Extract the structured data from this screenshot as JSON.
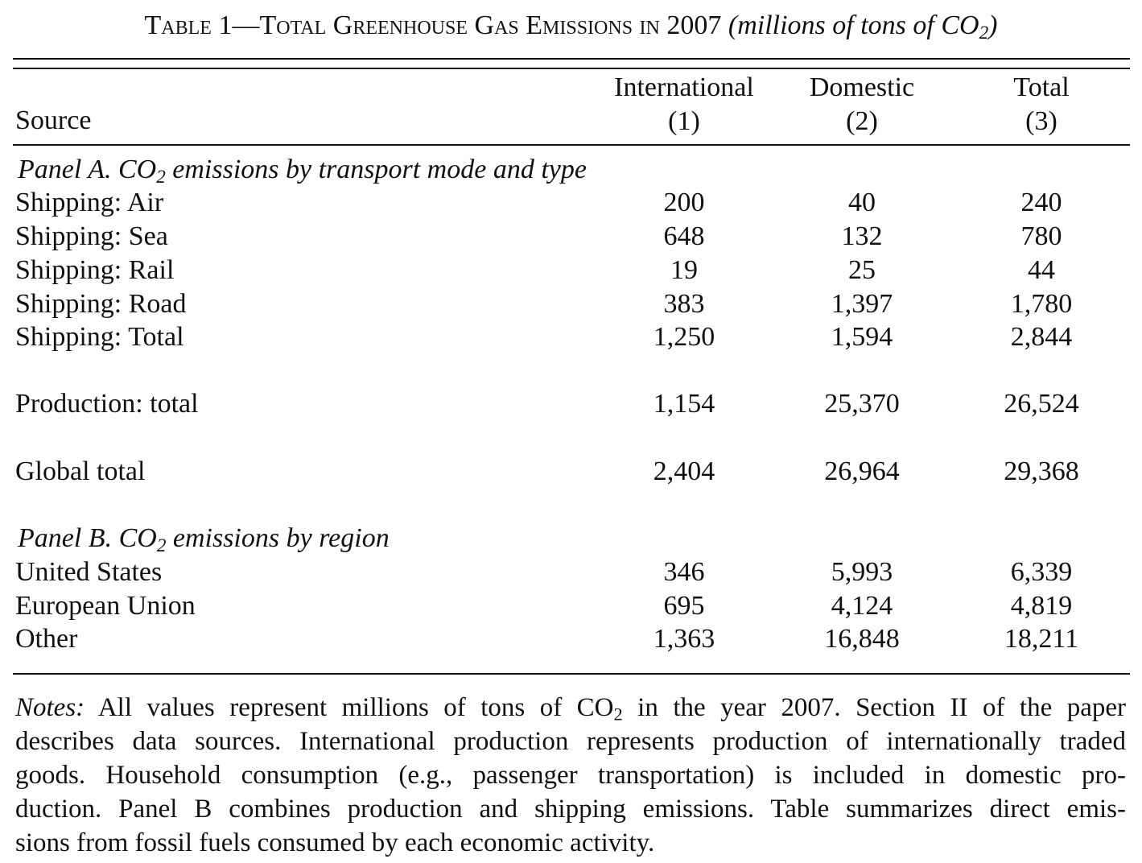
{
  "caption": {
    "table_label": "Table 1",
    "dash": "—",
    "title": "Total Greenhouse Gas Emissions in 2007",
    "units_open": "(millions of tons of CO",
    "units_sub": "2",
    "units_close": ")"
  },
  "header": {
    "source_label": "Source",
    "columns": [
      {
        "name": "International",
        "number": "(1)"
      },
      {
        "name": "Domestic",
        "number": "(2)"
      },
      {
        "name": "Total",
        "number": "(3)"
      }
    ]
  },
  "panel_a": {
    "title_prefix": "Panel A. CO",
    "title_sub": "2",
    "title_suffix": " emissions by transport mode and type",
    "rows": [
      {
        "label": "Shipping: Air",
        "values": [
          "200",
          "40",
          "240"
        ]
      },
      {
        "label": "Shipping: Sea",
        "values": [
          "648",
          "132",
          "780"
        ]
      },
      {
        "label": "Shipping: Rail",
        "values": [
          "19",
          "25",
          "44"
        ]
      },
      {
        "label": "Shipping: Road",
        "values": [
          "383",
          "1,397",
          "1,780"
        ]
      },
      {
        "label": "Shipping: Total",
        "values": [
          "1,250",
          "1,594",
          "2,844"
        ]
      }
    ],
    "production": {
      "label": "Production: total",
      "values": [
        "1,154",
        "25,370",
        "26,524"
      ]
    },
    "global": {
      "label": "Global total",
      "values": [
        "2,404",
        "26,964",
        "29,368"
      ]
    }
  },
  "panel_b": {
    "title_prefix": "Panel B. CO",
    "title_sub": "2",
    "title_suffix": " emissions by region",
    "rows": [
      {
        "label": "United States",
        "values": [
          "346",
          "5,993",
          "6,339"
        ]
      },
      {
        "label": "European Union",
        "values": [
          "695",
          "4,124",
          "4,819"
        ]
      },
      {
        "label": "Other",
        "values": [
          "1,363",
          "16,848",
          "18,211"
        ]
      }
    ]
  },
  "notes": {
    "label": "Notes:",
    "line1_a": " All values represent millions of tons of CO",
    "line1_sub": "2",
    "line1_b": " in the year 2007. Section II of the paper",
    "line2": "describes data sources. International production represents production of internationally traded",
    "line3": "goods. Household consumption (e.g., passenger transportation) is included in domestic pro-",
    "line4": "duction. Panel B combines production and shipping emissions. Table summarizes direct emis-",
    "line5": "sions from fossil fuels consumed by each economic activity."
  }
}
